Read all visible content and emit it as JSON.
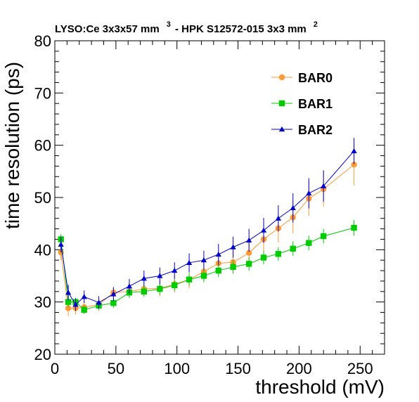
{
  "chart_data": {
    "type": "scatter",
    "title": "LYSO:Ce 3x3x57 mm",
    "title_sup1": "3",
    "title_mid": " - HPK S12572-015 3x3 mm",
    "title_sup2": "2",
    "xlabel": "threshold (mV)",
    "ylabel": "time resolution (ps)",
    "xlim": [
      0,
      270
    ],
    "ylim": [
      20,
      80
    ],
    "x_ticks": [
      0,
      50,
      100,
      150,
      200,
      250
    ],
    "y_ticks": [
      20,
      30,
      40,
      50,
      60,
      70,
      80
    ],
    "legend_position": "top-right",
    "series": [
      {
        "name": "BAR0",
        "color": "#ff9933",
        "marker": "circle",
        "x": [
          5,
          11,
          17,
          24,
          36,
          48,
          61,
          73,
          86,
          98,
          110,
          122,
          134,
          146,
          159,
          171,
          183,
          195,
          208,
          220,
          245
        ],
        "y": [
          39.5,
          28.8,
          28.8,
          29.0,
          29.5,
          31.8,
          32.0,
          32.5,
          32.6,
          33.4,
          34.3,
          35.8,
          37.4,
          37.6,
          39.4,
          42.0,
          44.1,
          46.2,
          49.8,
          51.6,
          56.3
        ],
        "err": [
          1.5,
          1.5,
          1.2,
          1.0,
          1.2,
          1.2,
          1.2,
          1.4,
          1.5,
          1.6,
          1.7,
          1.7,
          1.9,
          2.0,
          2.1,
          2.5,
          2.7,
          3.1,
          3.3,
          3.4,
          4.0
        ]
      },
      {
        "name": "BAR1",
        "color": "#00cc00",
        "marker": "square",
        "x": [
          5,
          11,
          17,
          24,
          36,
          48,
          61,
          73,
          86,
          98,
          110,
          122,
          134,
          146,
          159,
          171,
          183,
          195,
          208,
          220,
          245
        ],
        "y": [
          42.0,
          30.0,
          30.0,
          28.5,
          29.3,
          29.8,
          31.8,
          32.0,
          32.5,
          33.2,
          34.3,
          35.0,
          36.0,
          36.7,
          37.3,
          38.5,
          39.2,
          40.2,
          41.3,
          42.6,
          44.2
        ],
        "err": [
          1.0,
          1.0,
          0.8,
          0.8,
          0.8,
          0.9,
          1.0,
          1.0,
          1.1,
          1.1,
          1.2,
          1.2,
          1.2,
          1.3,
          1.3,
          1.3,
          1.3,
          1.4,
          1.4,
          1.4,
          1.5
        ]
      },
      {
        "name": "BAR2",
        "color": "#0000cc",
        "marker": "triangle",
        "x": [
          5,
          11,
          17,
          24,
          36,
          48,
          61,
          73,
          86,
          98,
          110,
          122,
          134,
          146,
          159,
          171,
          183,
          195,
          208,
          220,
          245
        ],
        "y": [
          41.0,
          31.8,
          29.5,
          31.0,
          29.9,
          31.5,
          33.0,
          34.5,
          35.0,
          36.0,
          37.5,
          38.0,
          39.1,
          40.5,
          41.8,
          43.7,
          46.0,
          48.0,
          50.8,
          52.2,
          58.9
        ],
        "err": [
          1.5,
          1.5,
          1.2,
          1.2,
          1.2,
          1.3,
          1.4,
          1.5,
          1.6,
          1.6,
          1.8,
          1.8,
          2.0,
          2.0,
          2.2,
          2.4,
          2.5,
          2.8,
          2.9,
          3.0,
          2.5
        ]
      }
    ]
  }
}
